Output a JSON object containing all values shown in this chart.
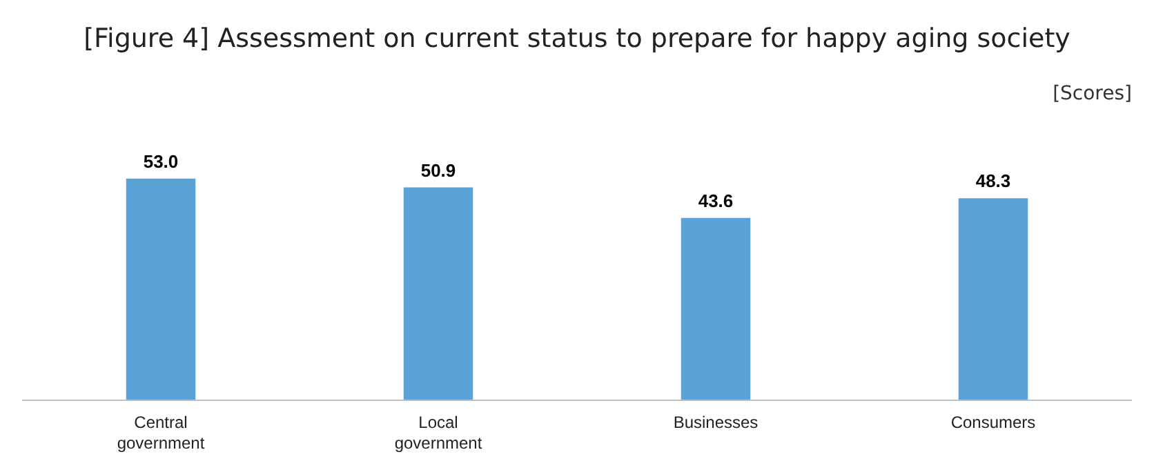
{
  "chart_data": {
    "type": "bar",
    "title": "[Figure 4] Assessment on current status to prepare for happy aging society",
    "ylabel": "[Scores]",
    "categories": [
      "Central government",
      "Local government",
      "Businesses",
      "Consumers"
    ],
    "values": [
      53.0,
      50.9,
      43.6,
      48.3
    ],
    "color": "#5ba3d6",
    "data_labels": true,
    "value_labels": [
      "53.0",
      "50.9",
      "43.6",
      "48.3"
    ]
  }
}
